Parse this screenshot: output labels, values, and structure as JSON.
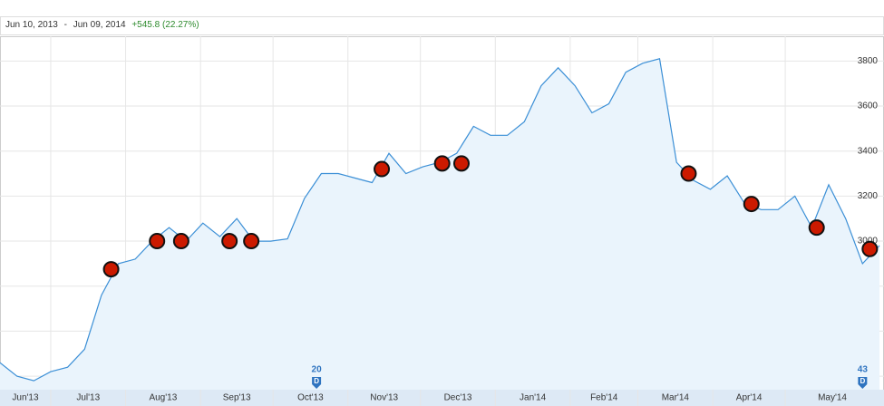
{
  "chart_data": {
    "type": "line",
    "range": {
      "start": "Jun 10, 2013",
      "separator": "-",
      "end": "Jun 09, 2014",
      "change": "+545.8 (22.27%)"
    },
    "x": [
      "2013-06-10",
      "2013-06-17",
      "2013-06-24",
      "2013-07-01",
      "2013-07-08",
      "2013-07-15",
      "2013-07-22",
      "2013-07-29",
      "2013-08-05",
      "2013-08-12",
      "2013-08-19",
      "2013-08-26",
      "2013-09-02",
      "2013-09-09",
      "2013-09-16",
      "2013-09-23",
      "2013-09-30",
      "2013-10-07",
      "2013-10-14",
      "2013-10-21",
      "2013-10-28",
      "2013-11-04",
      "2013-11-11",
      "2013-11-18",
      "2013-11-25",
      "2013-12-02",
      "2013-12-09",
      "2013-12-16",
      "2013-12-23",
      "2013-12-30",
      "2014-01-06",
      "2014-01-13",
      "2014-01-20",
      "2014-01-27",
      "2014-02-03",
      "2014-02-10",
      "2014-02-17",
      "2014-02-24",
      "2014-03-03",
      "2014-03-10",
      "2014-03-17",
      "2014-03-24",
      "2014-03-31",
      "2014-04-07",
      "2014-04-14",
      "2014-04-21",
      "2014-04-28",
      "2014-05-05",
      "2014-05-12",
      "2014-05-19",
      "2014-05-26",
      "2014-06-02",
      "2014-06-09"
    ],
    "values": [
      2460,
      2400,
      2380,
      2420,
      2440,
      2520,
      2760,
      2900,
      2920,
      3000,
      3060,
      3000,
      3080,
      3020,
      3100,
      3000,
      3000,
      3010,
      3190,
      3300,
      3300,
      3280,
      3260,
      3390,
      3300,
      3330,
      3350,
      3390,
      3510,
      3470,
      3470,
      3530,
      3690,
      3770,
      3690,
      3570,
      3610,
      3750,
      3790,
      3810,
      3350,
      3270,
      3230,
      3290,
      3170,
      3140,
      3140,
      3200,
      3060,
      3250,
      3100,
      2900,
      2980
    ],
    "color": "#3b8fd6",
    "fill": "#eaf4fc",
    "xlim": [
      "2013-06-10",
      "2014-06-09"
    ],
    "ylim": [
      2340,
      3910
    ],
    "yticks": [
      2400,
      2600,
      2800,
      3000,
      3200,
      3400,
      3600,
      3800
    ],
    "xticks": [
      {
        "value": "2013-06-01",
        "label": "Jun'13"
      },
      {
        "value": "2013-07-01",
        "label": "Jul'13"
      },
      {
        "value": "2013-08-01",
        "label": "Aug'13"
      },
      {
        "value": "2013-09-01",
        "label": "Sep'13"
      },
      {
        "value": "2013-10-01",
        "label": "Oct'13"
      },
      {
        "value": "2013-11-01",
        "label": "Nov'13"
      },
      {
        "value": "2013-12-01",
        "label": "Dec'13"
      },
      {
        "value": "2014-01-01",
        "label": "Jan'14"
      },
      {
        "value": "2014-02-01",
        "label": "Feb'14"
      },
      {
        "value": "2014-03-01",
        "label": "Mar'14"
      },
      {
        "value": "2014-04-01",
        "label": "Apr'14"
      },
      {
        "value": "2014-05-01",
        "label": "May'14"
      }
    ],
    "grid": true,
    "events": {
      "color": "#cc1a00",
      "x": [
        "2013-07-26",
        "2013-08-14",
        "2013-08-24",
        "2013-09-13",
        "2013-09-22",
        "2013-11-15",
        "2013-12-10",
        "2013-12-18",
        "2014-03-22",
        "2014-04-17",
        "2014-05-14",
        "2014-06-05"
      ],
      "values": [
        2875,
        3000,
        3000,
        3000,
        3000,
        3320,
        3345,
        3345,
        3300,
        3165,
        3060,
        2965
      ]
    },
    "flags": [
      {
        "x": "2013-10-19",
        "count": 20,
        "letter": "D"
      },
      {
        "x": "2014-06-02",
        "count": 43,
        "letter": "D"
      }
    ]
  }
}
